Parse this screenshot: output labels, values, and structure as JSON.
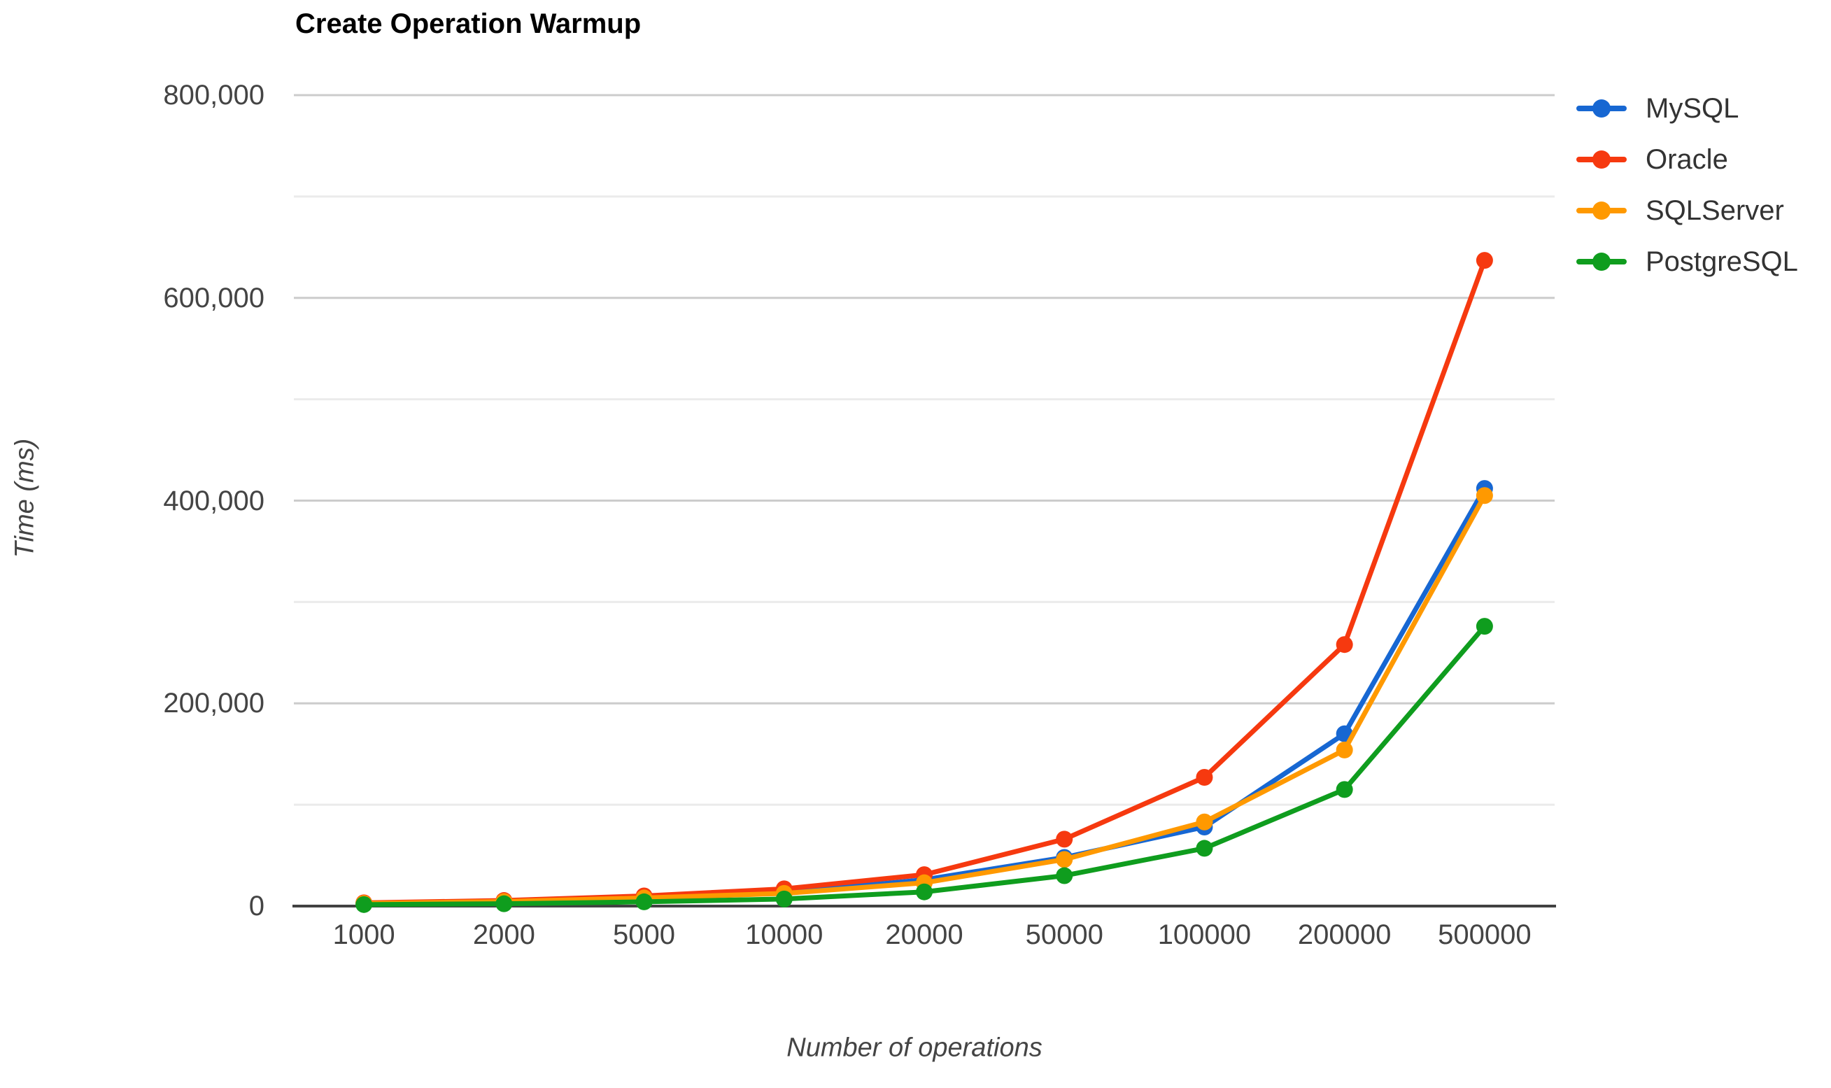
{
  "chart_data": {
    "type": "line",
    "title": "Create Operation Warmup",
    "xlabel": "Number of operations",
    "ylabel": "Time (ms)",
    "categories": [
      1000,
      2000,
      5000,
      10000,
      20000,
      50000,
      100000,
      200000,
      500000
    ],
    "series": [
      {
        "name": "MySQL",
        "color": "#1767d2",
        "values": [
          2500,
          4200,
          7500,
          13000,
          26000,
          48000,
          78000,
          170000,
          412000
        ]
      },
      {
        "name": "Oracle",
        "color": "#f6390f",
        "values": [
          3200,
          5500,
          10000,
          17000,
          31000,
          66000,
          127000,
          258000,
          637000
        ]
      },
      {
        "name": "SQLServer",
        "color": "#ff9900",
        "values": [
          2600,
          4500,
          8000,
          12500,
          23000,
          46000,
          83000,
          154000,
          405000
        ]
      },
      {
        "name": "PostgreSQL",
        "color": "#0f9d1e",
        "values": [
          1500,
          2300,
          4200,
          7000,
          14000,
          30000,
          57000,
          115000,
          276000
        ]
      }
    ],
    "ylim": [
      0,
      800000
    ],
    "y_major_tick_step": 200000,
    "y_minor_tick_step": 100000,
    "y_tick_labels": [
      "0",
      "200,000",
      "400,000",
      "600,000",
      "800,000"
    ],
    "grid": true,
    "legend_position": "right",
    "line_width": 7,
    "point_radius": 12
  },
  "colors": {
    "background": "#ffffff",
    "title_text": "#000000",
    "axis_line": "#424242",
    "grid_major": "#cccccc",
    "grid_minor": "#ebebeb",
    "tick_label": "#444444",
    "legend_text": "#333333"
  },
  "layout_labels": {
    "legend_names": [
      "MySQL",
      "Oracle",
      "SQLServer",
      "PostgreSQL"
    ]
  }
}
